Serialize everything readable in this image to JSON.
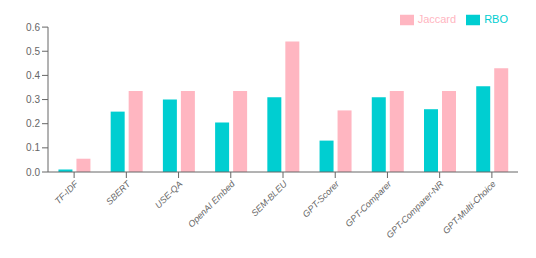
{
  "chart_data": {
    "type": "bar",
    "categories": [
      "TF-IDF",
      "SBERT",
      "USE-QA",
      "OpenAI Embed",
      "SEM-BLEU",
      "GPT-Scorer",
      "GPT-Comparer",
      "GPT-Comparer-NR",
      "GPT-Multi-Choice"
    ],
    "series": [
      {
        "name": "RBO",
        "color": "#00CED1",
        "values": [
          0.01,
          0.25,
          0.3,
          0.205,
          0.31,
          0.13,
          0.31,
          0.26,
          0.355
        ]
      },
      {
        "name": "Jaccard",
        "color": "#FFB6C1",
        "values": [
          0.055,
          0.335,
          0.335,
          0.335,
          0.54,
          0.255,
          0.335,
          0.335,
          0.43
        ]
      }
    ],
    "ylim": [
      0,
      0.6
    ],
    "yticks": [
      {
        "value": 0.0,
        "label": "0.0"
      },
      0.1,
      0.2,
      0.3,
      0.4,
      0.5,
      0.6
    ],
    "legend": "upper right",
    "grid": false
  }
}
